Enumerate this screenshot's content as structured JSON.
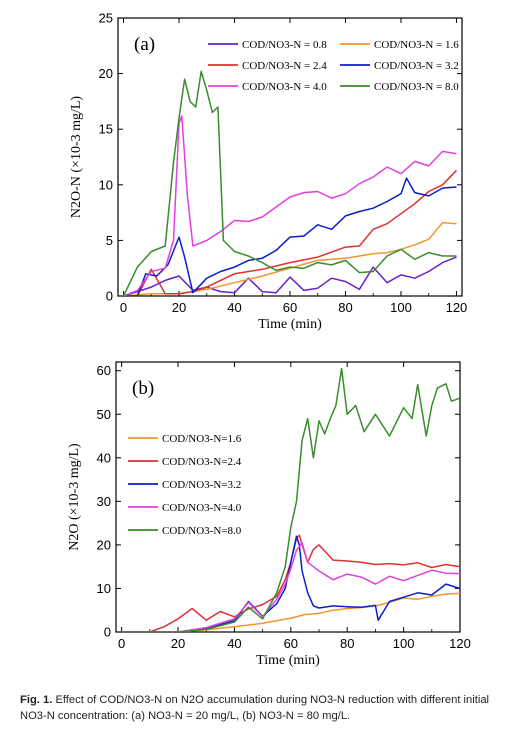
{
  "chart_data": [
    {
      "type": "line",
      "panel_label": "(a)",
      "xlabel": "Time (min)",
      "ylabel": "N2O-N (×10-3 mg/L)",
      "xlim": [
        -2,
        122
      ],
      "ylim": [
        0,
        25
      ],
      "xticks": [
        0,
        20,
        40,
        60,
        80,
        100,
        120
      ],
      "yticks": [
        0,
        5,
        10,
        15,
        20,
        25
      ],
      "legend_placement": "top",
      "series": [
        {
          "name": "COD/NO3-N = 0.8",
          "color": "#6a22c8",
          "x": [
            0,
            5,
            10,
            15,
            20,
            25,
            30,
            35,
            40,
            45,
            50,
            55,
            60,
            65,
            70,
            75,
            80,
            85,
            90,
            95,
            100,
            105,
            110,
            115,
            120
          ],
          "y": [
            0,
            0.4,
            0.8,
            1.4,
            1.8,
            0.5,
            0.8,
            0.4,
            0.3,
            1.6,
            0.4,
            0.3,
            1.7,
            0.5,
            0.7,
            1.6,
            1.3,
            0.6,
            2.6,
            1.2,
            1.9,
            1.6,
            2.2,
            3.0,
            3.5
          ]
        },
        {
          "name": "COD/NO3-N = 1.6",
          "color": "#f0962e",
          "x": [
            0,
            10,
            20,
            30,
            40,
            50,
            60,
            70,
            80,
            90,
            95,
            100,
            105,
            110,
            115,
            120
          ],
          "y": [
            0,
            0.2,
            0.2,
            0.6,
            1.2,
            1.8,
            2.5,
            3.2,
            3.4,
            3.8,
            3.9,
            4.2,
            4.6,
            5.1,
            6.6,
            6.5
          ]
        },
        {
          "name": "COD/NO3-N = 2.4",
          "color": "#e03030",
          "x": [
            0,
            5,
            10,
            15,
            20,
            25,
            30,
            40,
            50,
            60,
            70,
            80,
            85,
            90,
            95,
            100,
            105,
            110,
            115,
            120
          ],
          "y": [
            0,
            0,
            2.4,
            0.2,
            0.2,
            0.4,
            0.8,
            2.0,
            2.4,
            3.0,
            3.5,
            4.4,
            4.5,
            6.0,
            6.5,
            7.4,
            8.3,
            9.4,
            10.0,
            11.3
          ]
        },
        {
          "name": "COD/NO3-N = 3.2",
          "color": "#0c1ecc",
          "x": [
            0,
            5,
            8,
            12,
            16,
            20,
            22,
            25,
            30,
            35,
            40,
            45,
            50,
            55,
            60,
            65,
            70,
            75,
            80,
            85,
            90,
            95,
            100,
            102,
            105,
            110,
            115,
            120
          ],
          "y": [
            0,
            0,
            2.0,
            1.8,
            2.8,
            5.3,
            3.5,
            0.3,
            1.6,
            2.2,
            2.6,
            3.2,
            3.4,
            4.1,
            5.3,
            5.4,
            6.4,
            6.0,
            7.2,
            7.6,
            7.9,
            8.5,
            9.2,
            10.6,
            9.3,
            9.0,
            9.7,
            9.8
          ]
        },
        {
          "name": "COD/NO3-N = 4.0",
          "color": "#e040e0",
          "x": [
            0,
            5,
            10,
            15,
            18,
            20,
            21,
            23,
            25,
            30,
            35,
            40,
            45,
            50,
            55,
            60,
            65,
            70,
            75,
            80,
            85,
            90,
            95,
            100,
            105,
            110,
            115,
            120
          ],
          "y": [
            0,
            0.5,
            2.2,
            2.5,
            5.0,
            15.5,
            16.2,
            9.0,
            4.5,
            5.0,
            5.8,
            6.8,
            6.7,
            7.1,
            8.0,
            8.9,
            9.3,
            9.4,
            8.8,
            9.2,
            10.1,
            10.7,
            11.6,
            11.0,
            12.1,
            11.7,
            13.0,
            12.8
          ]
        },
        {
          "name": "COD/NO3-N = 8.0",
          "color": "#3a8c2e",
          "x": [
            0,
            5,
            10,
            15,
            18,
            20,
            22,
            24,
            26,
            28,
            30,
            32,
            34,
            36,
            40,
            45,
            50,
            55,
            60,
            65,
            70,
            75,
            80,
            85,
            90,
            95,
            100,
            105,
            110,
            115,
            120
          ],
          "y": [
            0,
            2.6,
            4.0,
            4.5,
            12.0,
            16.0,
            19.5,
            17.5,
            17.0,
            20.2,
            18.5,
            16.5,
            17.0,
            5.0,
            4.0,
            3.6,
            3.0,
            2.3,
            2.6,
            2.5,
            3.0,
            2.8,
            3.2,
            2.1,
            2.2,
            3.6,
            4.2,
            3.3,
            3.9,
            3.6,
            3.6
          ]
        }
      ]
    },
    {
      "type": "line",
      "panel_label": "(b)",
      "xlabel": "Time (min)",
      "ylabel": "N2O (×10-3 mg/L)",
      "xlim": [
        -2,
        120
      ],
      "ylim": [
        0,
        62
      ],
      "xticks": [
        0,
        20,
        40,
        60,
        80,
        100,
        120
      ],
      "yticks": [
        0,
        10,
        20,
        30,
        40,
        50,
        60
      ],
      "legend_placement": "left",
      "series": [
        {
          "name": "COD/NO3-N=1.6",
          "color": "#f0962e",
          "x": [
            0,
            10,
            20,
            30,
            40,
            50,
            55,
            60,
            65,
            70,
            75,
            80,
            85,
            90,
            95,
            100,
            105,
            110,
            115,
            120
          ],
          "y": [
            0,
            0,
            0,
            0.5,
            1.2,
            2.0,
            2.6,
            3.2,
            4.0,
            4.3,
            5.0,
            5.4,
            5.6,
            6.0,
            6.8,
            7.8,
            7.5,
            8.2,
            8.7,
            8.9
          ]
        },
        {
          "name": "COD/NO3-N=2.4",
          "color": "#e03030",
          "x": [
            0,
            10,
            15,
            20,
            25,
            30,
            35,
            40,
            45,
            50,
            55,
            58,
            60,
            62,
            63,
            64,
            66,
            68,
            70,
            75,
            80,
            85,
            90,
            95,
            100,
            105,
            110,
            115,
            120
          ],
          "y": [
            0,
            0,
            1.2,
            3.0,
            5.4,
            2.7,
            4.7,
            3.5,
            5.3,
            6.3,
            8.2,
            12.0,
            16.0,
            21.5,
            22.2,
            20.0,
            16.0,
            19.0,
            20.0,
            16.5,
            16.3,
            16.0,
            15.5,
            15.7,
            15.4,
            15.9,
            14.8,
            15.5,
            15.0
          ]
        },
        {
          "name": "COD/NO3-N=3.2",
          "color": "#0c1ecc",
          "x": [
            0,
            10,
            20,
            30,
            40,
            45,
            50,
            55,
            58,
            60,
            62,
            63,
            64,
            66,
            68,
            70,
            75,
            80,
            85,
            90,
            91,
            95,
            100,
            105,
            110,
            115,
            120
          ],
          "y": [
            0,
            0,
            0,
            0.8,
            2.6,
            7.0,
            3.6,
            6.5,
            10.0,
            16.0,
            22.0,
            20.0,
            14.0,
            9.0,
            6.0,
            5.5,
            6.0,
            5.8,
            5.7,
            6.1,
            2.7,
            7.0,
            8.0,
            9.0,
            8.5,
            11.0,
            10.0
          ]
        },
        {
          "name": "COD/NO3-N=4.0",
          "color": "#e040e0",
          "x": [
            0,
            10,
            20,
            30,
            40,
            45,
            50,
            55,
            58,
            60,
            62,
            64,
            66,
            68,
            70,
            75,
            80,
            85,
            90,
            95,
            100,
            105,
            110,
            115,
            120
          ],
          "y": [
            0,
            0,
            0,
            1.0,
            3.0,
            6.8,
            3.5,
            7.5,
            11.0,
            14.5,
            18.8,
            20.5,
            16.0,
            15.0,
            14.0,
            12.0,
            13.3,
            12.6,
            11.0,
            12.8,
            11.8,
            13.0,
            14.2,
            13.5,
            13.4
          ]
        },
        {
          "name": "COD/NO3-N=8.0",
          "color": "#3a8c2e",
          "x": [
            0,
            10,
            20,
            30,
            40,
            45,
            50,
            55,
            58,
            60,
            62,
            64,
            66,
            68,
            70,
            72,
            74,
            76,
            78,
            80,
            83,
            86,
            90,
            95,
            100,
            103,
            105,
            108,
            110,
            112,
            115,
            117,
            120
          ],
          "y": [
            0,
            0,
            0,
            0.6,
            2.3,
            5.7,
            3.0,
            9.0,
            15.0,
            24.0,
            30.0,
            44.0,
            49.0,
            40.0,
            48.5,
            45.5,
            49.0,
            52.0,
            60.5,
            50.0,
            52.0,
            46.0,
            50.0,
            45.0,
            51.5,
            49.0,
            56.8,
            45.0,
            52.0,
            56.0,
            57.0,
            53.0,
            53.7
          ]
        }
      ]
    }
  ],
  "caption": {
    "label": "Fig. 1.",
    "text": "Effect of COD/NO3-N on N2O accumulation during NO3-N reduction with different initial NO3-N concentration: (a) NO3-N = 20 mg/L, (b) NO3-N = 80 mg/L."
  }
}
